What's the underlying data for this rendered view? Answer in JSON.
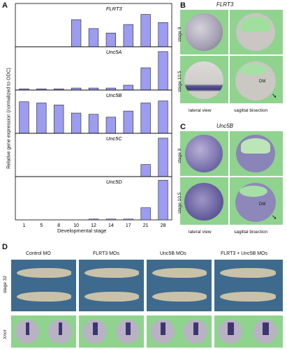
{
  "panels": {
    "a": "A",
    "b": "B",
    "c": "C",
    "d": "D"
  },
  "chart_data": {
    "type": "bar",
    "ylabel": "Relative gene expression (normalized to ODC)",
    "xlabel": "Developmental stage",
    "categories": [
      "1",
      "5",
      "8",
      "10",
      "12",
      "14",
      "17",
      "21",
      "28"
    ],
    "subplots": [
      {
        "gene": "FLRT3",
        "values": [
          0,
          0,
          0,
          0.67,
          0.45,
          0.34,
          0.55,
          0.8,
          0.6
        ]
      },
      {
        "gene": "Unc5A",
        "values": [
          0.03,
          0.03,
          0.03,
          0.05,
          0.05,
          0.05,
          0.12,
          0.55,
          0.95
        ]
      },
      {
        "gene": "Unc5B",
        "values": [
          0.78,
          0.75,
          0.7,
          0.5,
          0.47,
          0.4,
          0.55,
          0.75,
          0.8
        ]
      },
      {
        "gene": "Unc5C",
        "values": [
          0,
          0,
          0,
          0,
          0,
          0,
          0,
          0.3,
          0.95
        ]
      },
      {
        "gene": "Unc5D",
        "values": [
          0,
          0,
          0,
          0,
          0.02,
          0.02,
          0.02,
          0.3,
          0.98
        ]
      }
    ],
    "bar_color": "#9c9cf0"
  },
  "panel_b": {
    "gene": "FLRT3",
    "rows": [
      "stage 9",
      "stage 10.5"
    ],
    "cols": [
      "lateral view",
      "sagittal bisection"
    ],
    "annotation": "DM"
  },
  "panel_c": {
    "gene": "Unc5B",
    "rows": [
      "stage 9",
      "stage 10.5"
    ],
    "cols": [
      "lateral view",
      "sagittal bisection"
    ],
    "annotation": "DM"
  },
  "panel_d": {
    "conditions": [
      "Control MO",
      "FLRT3 MOs",
      "Unc5B MOs",
      "FLRT3 + Unc5B MOs"
    ],
    "row_labels": [
      "stage 32",
      "Xnot"
    ]
  }
}
